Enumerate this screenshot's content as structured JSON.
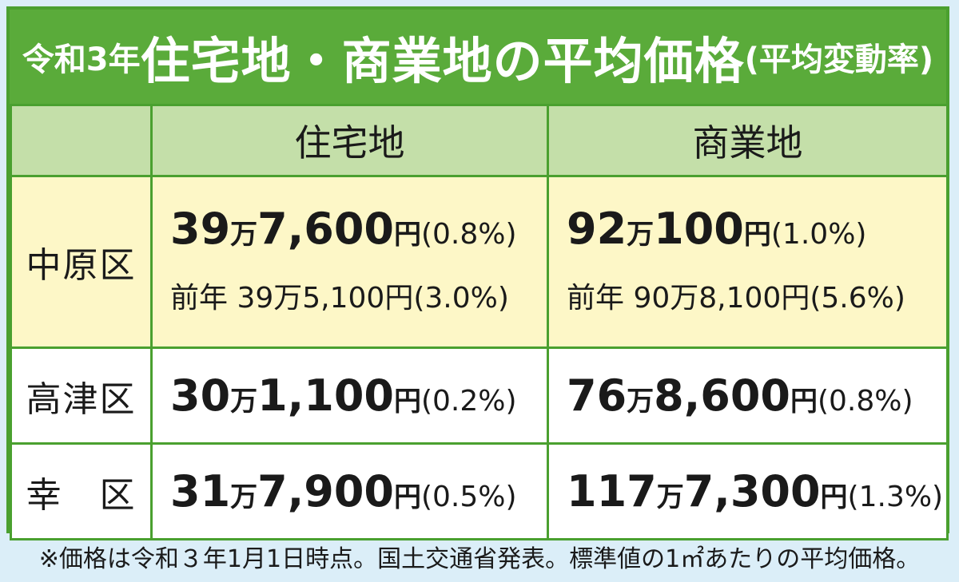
{
  "title": {
    "prefix": "令和3年",
    "main": "住宅地・商業地の平均価格",
    "paren": "(平均変動率)"
  },
  "columns": [
    "住宅地",
    "商業地"
  ],
  "rows": [
    {
      "ward": "中原区",
      "residential": {
        "man": "39",
        "rest": "7,600",
        "yen": "円",
        "pct": "(0.8%)",
        "prev": "前年 39万5,100円(3.0%)"
      },
      "commercial": {
        "man": "92",
        "rest": "100",
        "yen": "円",
        "pct": "(1.0%)",
        "prev": "前年 90万8,100円(5.6%)"
      }
    },
    {
      "ward": "高津区",
      "residential": {
        "man": "30",
        "rest": "1,100",
        "yen": "円",
        "pct": "(0.2%)"
      },
      "commercial": {
        "man": "76",
        "rest": "8,600",
        "yen": "円",
        "pct": "(0.8%)"
      }
    },
    {
      "ward": "幸　区",
      "residential": {
        "man": "31",
        "rest": "7,900",
        "yen": "円",
        "pct": "(0.5%)"
      },
      "commercial": {
        "man": "117",
        "rest": "7,300",
        "yen": "円",
        "pct": "(1.3%)"
      }
    }
  ],
  "unit_man": "万",
  "footer": "※価格は令和３年1月1日時点。国土交通省発表。標準値の1㎡あたりの平均価格。",
  "colors": {
    "green": "#5aab3a",
    "header": "#c4dfa9",
    "highlight": "#fdf7c7"
  }
}
